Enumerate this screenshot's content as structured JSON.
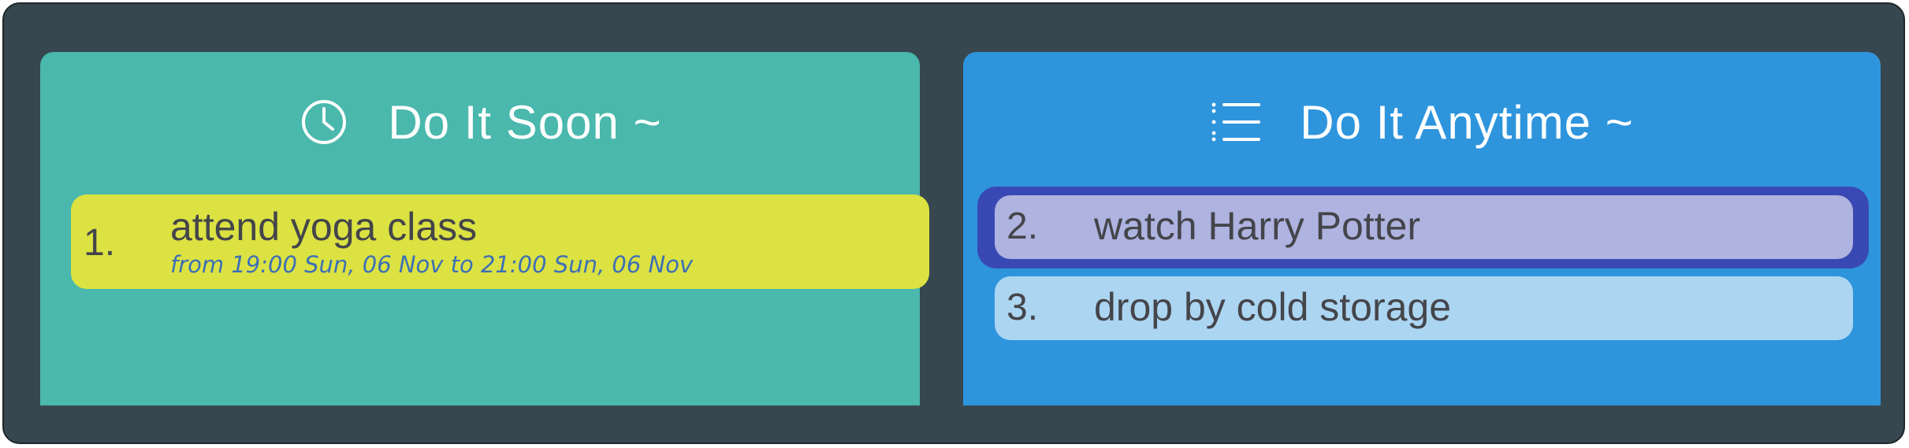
{
  "colors": {
    "background": "#37474f",
    "soon_panel": "#4ab8ac",
    "anytime_panel": "#2e95dd",
    "task_yellow": "#dbe242",
    "task_selected": "#aeb3e0",
    "selected_outline": "#3949b4",
    "task_light_blue": "#acd5f2",
    "time_text": "#3d6fb6"
  },
  "soon": {
    "icon": "clock-icon",
    "title": "Do It Soon ~",
    "tasks": [
      {
        "index": "1.",
        "text": "attend yoga class",
        "time": "from 19:00 Sun, 06 Nov to 21:00 Sun, 06 Nov"
      }
    ]
  },
  "anytime": {
    "icon": "list-icon",
    "title": "Do It Anytime ~",
    "tasks": [
      {
        "index": "2.",
        "text": "watch Harry Potter",
        "selected": true
      },
      {
        "index": "3.",
        "text": "drop by cold storage",
        "selected": false
      }
    ]
  }
}
